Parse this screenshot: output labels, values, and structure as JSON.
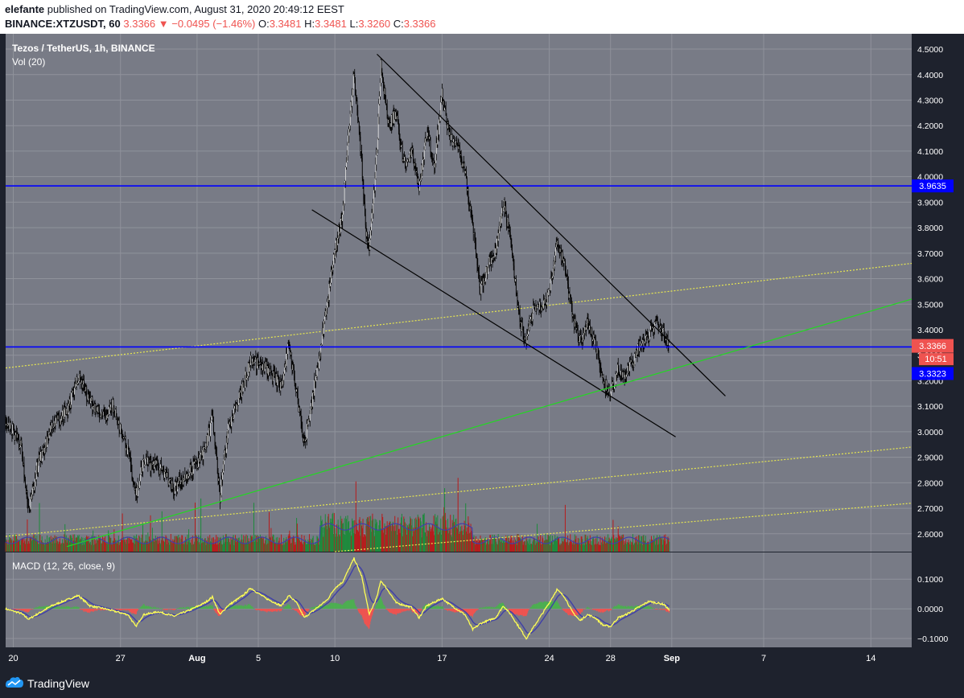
{
  "header": {
    "author": "elefante",
    "published_text": "published on TradingView.com, August 31, 2020 20:49:12 EEST",
    "symbol_interval": "BINANCE:XTZUSDT, 60",
    "last": "3.3366",
    "change": "−0.0495 (−1.46%)",
    "o_label": "O:",
    "o": "3.3481",
    "h_label": "H:",
    "h": "3.3481",
    "l_label": "L:",
    "l": "3.3260",
    "c_label": "C:",
    "c": "3.3366"
  },
  "legend": {
    "title": "Tezos / TetherUS, 1h, BINANCE",
    "volume": "Vol (20)",
    "macd": "MACD (12, 26, close, 9)"
  },
  "badges": {
    "resistance": "3.9635",
    "last_price": "3.3366",
    "countdown": "10:51",
    "support": "3.3323"
  },
  "footer": {
    "brand": "TradingView"
  },
  "colors": {
    "background": "#787b86",
    "panel_bg": "#1e222d",
    "grid": "#8f929b",
    "candle": "#000000",
    "hline": "#0000ff",
    "green_trend": "#22d822",
    "yellow_dotted": "#e8e850",
    "vol_up": "#1e8a3c",
    "vol_down": "#b71c1c",
    "macd_line": "#ffff55",
    "signal_line": "#3f3fa8",
    "last_price_badge": "#ef5350",
    "level_badge": "#0000ff"
  },
  "chart_data": [
    {
      "type": "candlestick",
      "title": "Tezos / TetherUS, 1h, BINANCE",
      "y_axis_side": "right",
      "ylim": [
        2.53,
        4.56
      ],
      "y_ticks": [
        2.6,
        2.7,
        2.8,
        2.9,
        3.0,
        3.1,
        3.2,
        3.3,
        3.4,
        3.5,
        3.6,
        3.7,
        3.8,
        3.9,
        4.0,
        4.1,
        4.2,
        4.3,
        4.4,
        4.5
      ],
      "x_ticks": [
        "20",
        "27",
        "Aug",
        "5",
        "10",
        "17",
        "24",
        "28",
        "Sep",
        "7",
        "14"
      ],
      "x_dates": [
        "2020-07-20",
        "2020-07-27",
        "2020-08-01",
        "2020-08-05",
        "2020-08-10",
        "2020-08-17",
        "2020-08-24",
        "2020-08-28",
        "2020-09-01",
        "2020-09-07",
        "2020-09-14"
      ],
      "xlim": [
        "2020-07-19T12:00",
        "2020-09-16T16:00"
      ],
      "last_bar": "2020-08-31T20:00",
      "price_path": [
        [
          "2020-07-19T12:00",
          3.05
        ],
        [
          "2020-07-20T12:00",
          2.95
        ],
        [
          "2020-07-21T00:00",
          2.68
        ],
        [
          "2020-07-21T12:00",
          2.85
        ],
        [
          "2020-07-22T12:00",
          3.02
        ],
        [
          "2020-07-23T12:00",
          3.08
        ],
        [
          "2020-07-24T06:00",
          3.22
        ],
        [
          "2020-07-25T00:00",
          3.12
        ],
        [
          "2020-07-26T00:00",
          3.05
        ],
        [
          "2020-07-26T12:00",
          3.1
        ],
        [
          "2020-07-27T12:00",
          2.92
        ],
        [
          "2020-07-28T00:00",
          2.75
        ],
        [
          "2020-07-28T12:00",
          2.88
        ],
        [
          "2020-07-29T12:00",
          2.86
        ],
        [
          "2020-07-30T12:00",
          2.78
        ],
        [
          "2020-07-31T12:00",
          2.84
        ],
        [
          "2020-08-01T12:00",
          2.92
        ],
        [
          "2020-08-02T00:00",
          3.05
        ],
        [
          "2020-08-02T12:00",
          2.75
        ],
        [
          "2020-08-03T00:00",
          3.0
        ],
        [
          "2020-08-04T00:00",
          3.18
        ],
        [
          "2020-08-04T12:00",
          3.28
        ],
        [
          "2020-08-05T12:00",
          3.25
        ],
        [
          "2020-08-06T12:00",
          3.18
        ],
        [
          "2020-08-07T00:00",
          3.35
        ],
        [
          "2020-08-07T12:00",
          3.15
        ],
        [
          "2020-08-08T00:00",
          2.95
        ],
        [
          "2020-08-08T12:00",
          3.12
        ],
        [
          "2020-08-09T00:00",
          3.3
        ],
        [
          "2020-08-09T12:00",
          3.5
        ],
        [
          "2020-08-10T00:00",
          3.72
        ],
        [
          "2020-08-10T12:00",
          3.85
        ],
        [
          "2020-08-11T00:00",
          4.25
        ],
        [
          "2020-08-11T06:00",
          4.4
        ],
        [
          "2020-08-11T18:00",
          4.05
        ],
        [
          "2020-08-12T00:00",
          3.8
        ],
        [
          "2020-08-12T06:00",
          3.7
        ],
        [
          "2020-08-12T18:00",
          4.1
        ],
        [
          "2020-08-13T00:00",
          4.45
        ],
        [
          "2020-08-13T12:00",
          4.2
        ],
        [
          "2020-08-14T00:00",
          4.25
        ],
        [
          "2020-08-14T12:00",
          4.05
        ],
        [
          "2020-08-15T00:00",
          4.1
        ],
        [
          "2020-08-15T12:00",
          3.95
        ],
        [
          "2020-08-16T00:00",
          4.18
        ],
        [
          "2020-08-16T12:00",
          4.05
        ],
        [
          "2020-08-17T00:00",
          4.32
        ],
        [
          "2020-08-17T12:00",
          4.15
        ],
        [
          "2020-08-18T00:00",
          4.12
        ],
        [
          "2020-08-18T12:00",
          4.02
        ],
        [
          "2020-08-19T00:00",
          3.8
        ],
        [
          "2020-08-19T12:00",
          3.55
        ],
        [
          "2020-08-20T00:00",
          3.65
        ],
        [
          "2020-08-20T12:00",
          3.72
        ],
        [
          "2020-08-21T00:00",
          3.9
        ],
        [
          "2020-08-21T12:00",
          3.75
        ],
        [
          "2020-08-22T00:00",
          3.45
        ],
        [
          "2020-08-22T12:00",
          3.35
        ],
        [
          "2020-08-23T00:00",
          3.5
        ],
        [
          "2020-08-23T12:00",
          3.48
        ],
        [
          "2020-08-24T00:00",
          3.55
        ],
        [
          "2020-08-24T12:00",
          3.75
        ],
        [
          "2020-08-25T00:00",
          3.65
        ],
        [
          "2020-08-25T12:00",
          3.45
        ],
        [
          "2020-08-26T00:00",
          3.35
        ],
        [
          "2020-08-26T12:00",
          3.42
        ],
        [
          "2020-08-27T00:00",
          3.35
        ],
        [
          "2020-08-27T12:00",
          3.2
        ],
        [
          "2020-08-28T00:00",
          3.15
        ],
        [
          "2020-08-28T12:00",
          3.25
        ],
        [
          "2020-08-29T00:00",
          3.22
        ],
        [
          "2020-08-29T12:00",
          3.28
        ],
        [
          "2020-08-30T00:00",
          3.35
        ],
        [
          "2020-08-30T12:00",
          3.38
        ],
        [
          "2020-08-31T00:00",
          3.42
        ],
        [
          "2020-08-31T12:00",
          3.38
        ],
        [
          "2020-08-31T20:00",
          3.3366
        ]
      ],
      "horizontal_levels": [
        3.9635,
        3.3323
      ],
      "trendlines": [
        {
          "from": [
            "2020-08-12T18:00",
            4.48
          ],
          "to": [
            "2020-09-04T12:00",
            3.14
          ],
          "style": "solid",
          "color": "#000000"
        },
        {
          "from": [
            "2020-08-08T12:00",
            3.87
          ],
          "to": [
            "2020-09-01T06:00",
            2.98
          ],
          "style": "solid",
          "color": "#000000"
        },
        {
          "from": [
            "2020-07-23T12:00",
            2.55
          ],
          "to": [
            "2020-09-16T16:00",
            3.52
          ],
          "style": "solid",
          "color": "#22d822"
        },
        {
          "from": [
            "2020-07-19T12:00",
            3.25
          ],
          "to": [
            "2020-09-16T16:00",
            3.66
          ],
          "style": "dotted",
          "color": "#e8e850"
        },
        {
          "from": [
            "2020-07-19T12:00",
            2.59
          ],
          "to": [
            "2020-09-16T16:00",
            2.94
          ],
          "style": "dotted",
          "color": "#e8e850"
        },
        {
          "from": [
            "2020-08-10T00:00",
            2.53
          ],
          "to": [
            "2020-09-16T16:00",
            2.72
          ],
          "style": "dotted",
          "color": "#e8e850"
        }
      ]
    },
    {
      "type": "bar",
      "title": "Vol (20)",
      "series": [
        {
          "name": "Vol (20)",
          "kind": "volume_bars"
        }
      ]
    },
    {
      "type": "line",
      "title": "MACD (12, 26, close, 9)",
      "ylim": [
        -0.13,
        0.19
      ],
      "y_ticks": [
        -0.1,
        0.0,
        0.1
      ],
      "y_tick_labels": [
        "−0.1000",
        "0.0000",
        "0.1000"
      ],
      "macd_path": [
        [
          "2020-07-19T12:00",
          0.0
        ],
        [
          "2020-07-20T12:00",
          -0.015
        ],
        [
          "2020-07-21T00:00",
          -0.035
        ],
        [
          "2020-07-21T12:00",
          -0.02
        ],
        [
          "2020-07-22T12:00",
          0.01
        ],
        [
          "2020-07-23T12:00",
          0.03
        ],
        [
          "2020-07-24T06:00",
          0.045
        ],
        [
          "2020-07-25T00:00",
          0.01
        ],
        [
          "2020-07-26T00:00",
          0.0
        ],
        [
          "2020-07-27T12:00",
          -0.02
        ],
        [
          "2020-07-28T00:00",
          -0.06
        ],
        [
          "2020-07-28T12:00",
          -0.02
        ],
        [
          "2020-07-29T12:00",
          -0.01
        ],
        [
          "2020-07-30T12:00",
          -0.025
        ],
        [
          "2020-07-31T12:00",
          -0.005
        ],
        [
          "2020-08-01T12:00",
          0.02
        ],
        [
          "2020-08-02T00:00",
          0.04
        ],
        [
          "2020-08-02T12:00",
          -0.02
        ],
        [
          "2020-08-03T00:00",
          0.01
        ],
        [
          "2020-08-04T00:00",
          0.045
        ],
        [
          "2020-08-04T12:00",
          0.07
        ],
        [
          "2020-08-05T12:00",
          0.035
        ],
        [
          "2020-08-06T12:00",
          0.01
        ],
        [
          "2020-08-07T00:00",
          0.045
        ],
        [
          "2020-08-07T12:00",
          0.02
        ],
        [
          "2020-08-08T00:00",
          -0.03
        ],
        [
          "2020-08-08T12:00",
          -0.01
        ],
        [
          "2020-08-09T12:00",
          0.03
        ],
        [
          "2020-08-10T00:00",
          0.07
        ],
        [
          "2020-08-10T12:00",
          0.09
        ],
        [
          "2020-08-11T06:00",
          0.17
        ],
        [
          "2020-08-11T18:00",
          0.11
        ],
        [
          "2020-08-12T06:00",
          -0.02
        ],
        [
          "2020-08-12T18:00",
          0.04
        ],
        [
          "2020-08-13T00:00",
          0.095
        ],
        [
          "2020-08-13T12:00",
          0.06
        ],
        [
          "2020-08-14T00:00",
          0.02
        ],
        [
          "2020-08-15T00:00",
          0.005
        ],
        [
          "2020-08-15T12:00",
          -0.03
        ],
        [
          "2020-08-16T00:00",
          0.01
        ],
        [
          "2020-08-17T00:00",
          0.035
        ],
        [
          "2020-08-17T12:00",
          0.015
        ],
        [
          "2020-08-18T12:00",
          -0.02
        ],
        [
          "2020-08-19T00:00",
          -0.07
        ],
        [
          "2020-08-19T12:00",
          -0.05
        ],
        [
          "2020-08-20T12:00",
          -0.03
        ],
        [
          "2020-08-21T00:00",
          0.01
        ],
        [
          "2020-08-21T12:00",
          -0.02
        ],
        [
          "2020-08-22T00:00",
          -0.06
        ],
        [
          "2020-08-22T12:00",
          -0.1
        ],
        [
          "2020-08-23T00:00",
          -0.06
        ],
        [
          "2020-08-23T12:00",
          -0.02
        ],
        [
          "2020-08-24T00:00",
          0.02
        ],
        [
          "2020-08-24T12:00",
          0.065
        ],
        [
          "2020-08-25T00:00",
          0.04
        ],
        [
          "2020-08-25T12:00",
          -0.01
        ],
        [
          "2020-08-26T00:00",
          -0.04
        ],
        [
          "2020-08-26T12:00",
          -0.02
        ],
        [
          "2020-08-27T00:00",
          -0.03
        ],
        [
          "2020-08-27T12:00",
          -0.055
        ],
        [
          "2020-08-28T00:00",
          -0.06
        ],
        [
          "2020-08-28T12:00",
          -0.03
        ],
        [
          "2020-08-29T00:00",
          -0.02
        ],
        [
          "2020-08-29T12:00",
          -0.005
        ],
        [
          "2020-08-30T00:00",
          0.01
        ],
        [
          "2020-08-30T12:00",
          0.025
        ],
        [
          "2020-08-31T00:00",
          0.02
        ],
        [
          "2020-08-31T12:00",
          0.015
        ],
        [
          "2020-08-31T20:00",
          -0.005
        ]
      ]
    }
  ]
}
